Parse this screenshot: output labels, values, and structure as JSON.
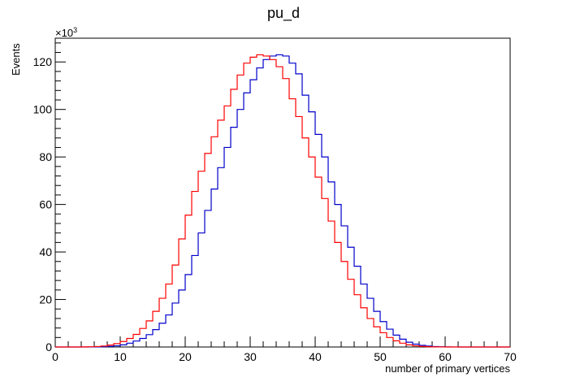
{
  "chart_data": {
    "type": "line",
    "title": "pu_d",
    "xlabel": "number of primary vertices",
    "ylabel": "Events",
    "y_multiplier": "×10",
    "y_multiplier_exp": "3",
    "xlim": [
      0,
      70
    ],
    "ylim": [
      0,
      130
    ],
    "grid": false,
    "legend": "none",
    "bin_width": 1,
    "x_ticks": [
      0,
      10,
      20,
      30,
      40,
      50,
      60,
      70
    ],
    "y_ticks": [
      0,
      20,
      40,
      60,
      80,
      100,
      120
    ],
    "series": [
      {
        "color": "#0000cc",
        "values": [
          0,
          0,
          0,
          0,
          0,
          0.02,
          0.05,
          0.1,
          0.25,
          0.5,
          0.9,
          1.6,
          2.5,
          3.6,
          5.2,
          7.3,
          10,
          13.5,
          18.5,
          24,
          30.5,
          38.5,
          48,
          57.5,
          66.5,
          75.5,
          84,
          92.5,
          100,
          107,
          112.5,
          117.5,
          121,
          122.5,
          123,
          122.5,
          119.5,
          115,
          106,
          99,
          89.5,
          80,
          69.5,
          60,
          51,
          42,
          34,
          26.5,
          20.5,
          15,
          10.7,
          7.5,
          5,
          3.3,
          2,
          1.2,
          0.7,
          0.4,
          0.2,
          0.1,
          0.05,
          0.02,
          0,
          0,
          0,
          0,
          0,
          0,
          0,
          0
        ]
      },
      {
        "color": "#ff0000",
        "values": [
          0,
          0,
          0,
          0,
          0.05,
          0.1,
          0.2,
          0.4,
          0.8,
          1.4,
          2.3,
          3.6,
          5.3,
          7.8,
          11,
          15,
          20.5,
          26.5,
          34.5,
          45.5,
          55.5,
          65.5,
          74,
          81.5,
          88.5,
          95.5,
          101.5,
          108.5,
          114.5,
          119.5,
          122,
          123,
          122.5,
          121,
          118,
          113,
          104.5,
          97,
          88,
          80,
          71.5,
          62.5,
          53,
          44,
          36,
          28.5,
          22,
          16.5,
          12,
          8.5,
          6,
          4,
          2.6,
          1.6,
          0.9,
          0.5,
          0.25,
          0.12,
          0.05,
          0.02,
          0,
          0,
          0,
          0,
          0,
          0,
          0,
          0,
          0,
          0
        ]
      }
    ]
  }
}
